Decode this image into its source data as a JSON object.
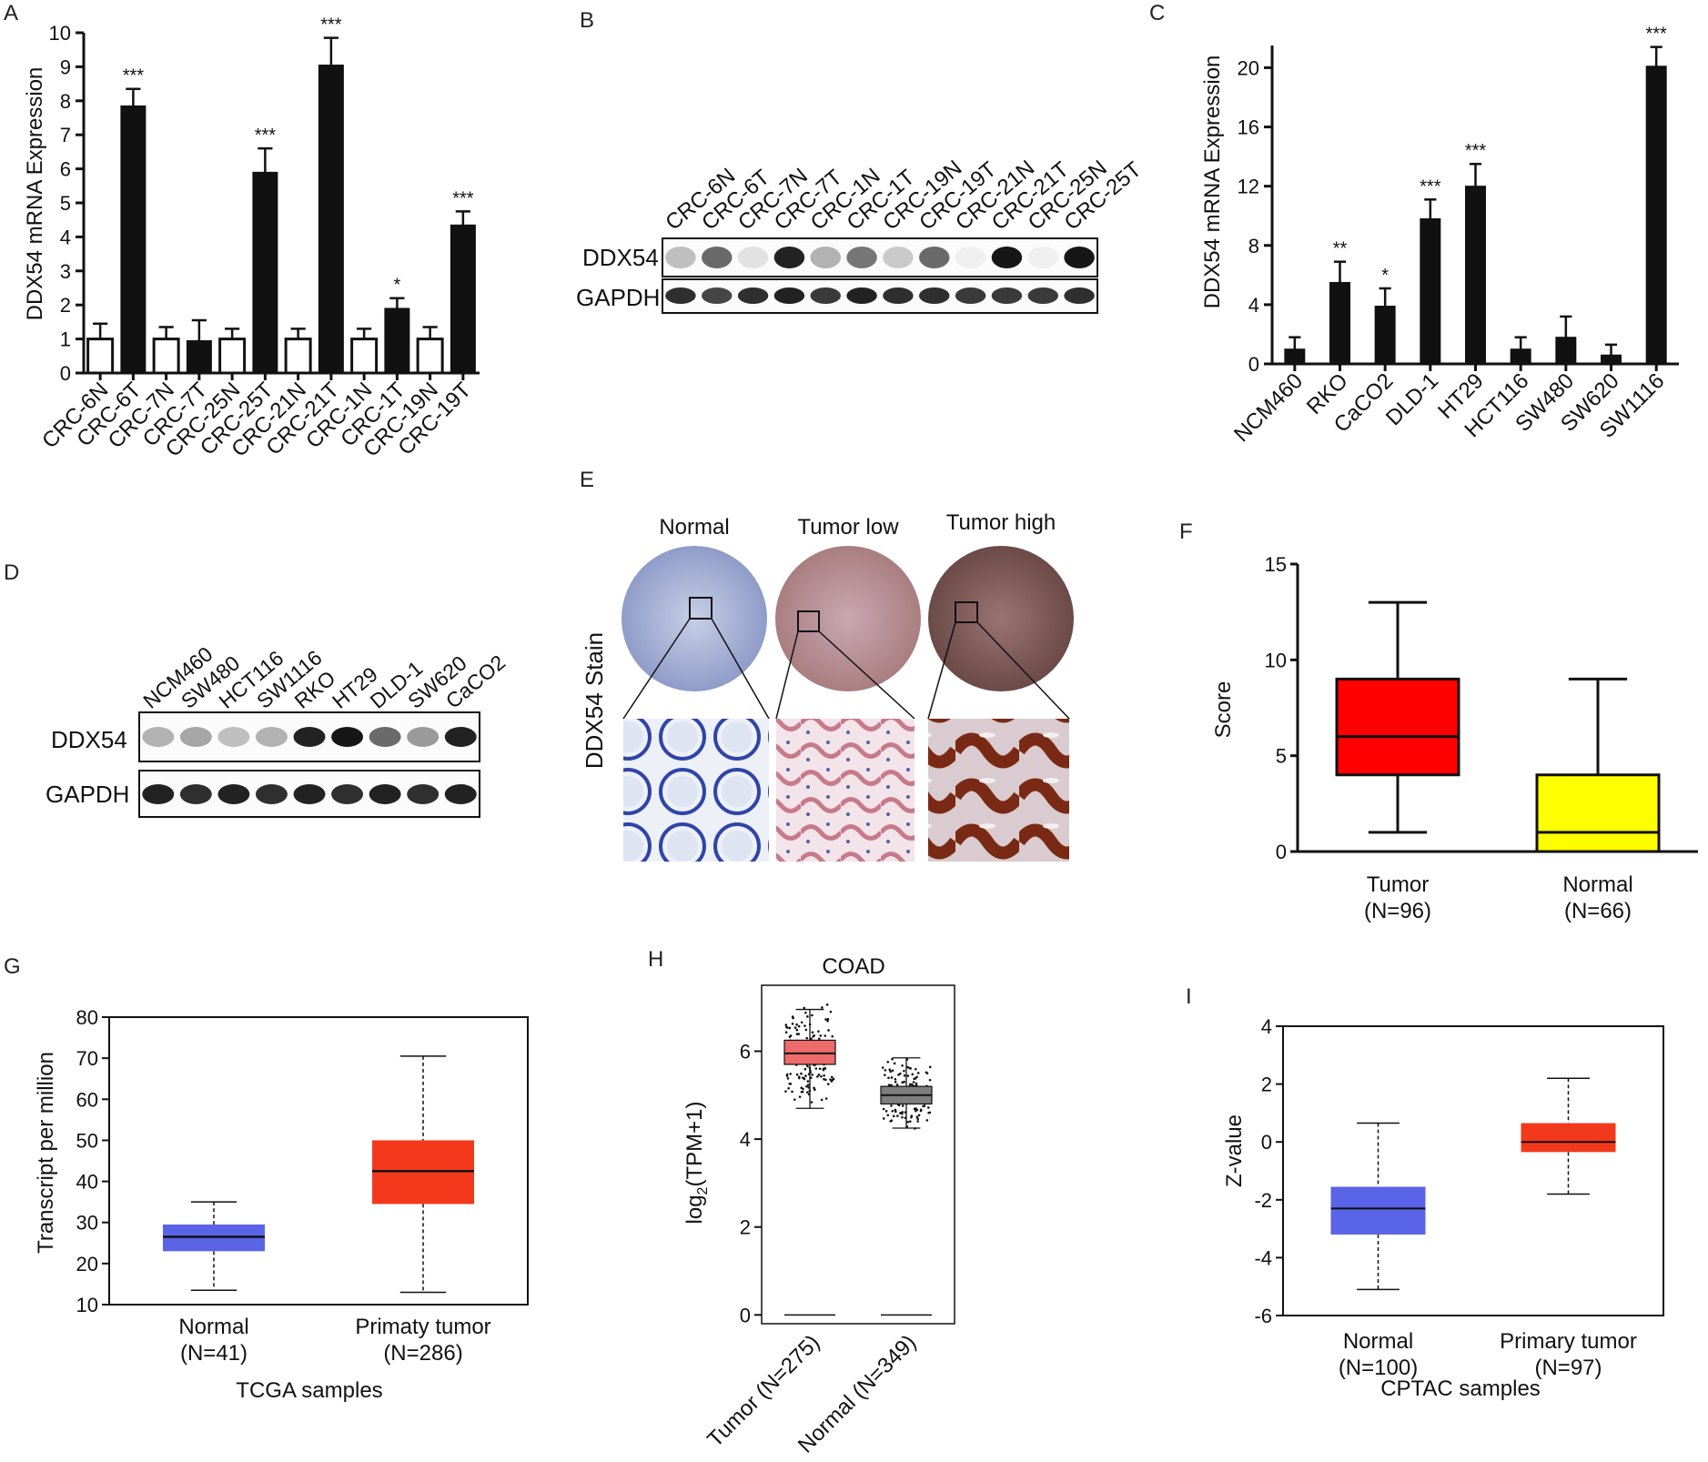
{
  "panel_letters": [
    "A",
    "B",
    "C",
    "D",
    "E",
    "F",
    "G",
    "H",
    "I"
  ],
  "colors": {
    "black": "#111111",
    "red": "#ff0000",
    "yellow": "#ffff00",
    "blue": "#5a64e6",
    "orange": "#f2391b",
    "pink": "#ef6a6a",
    "gray": "#7f7f7f"
  },
  "blotB": {
    "lanes": [
      "CRC-6N",
      "CRC-6T",
      "CRC-7N",
      "CRC-7T",
      "CRC-1N",
      "CRC-1T",
      "CRC-19N",
      "CRC-19T",
      "CRC-21N",
      "CRC-21T",
      "CRC-25N",
      "CRC-25T"
    ],
    "rows": [
      "DDX54",
      "GAPDH"
    ]
  },
  "blotD": {
    "lanes": [
      "NCM460",
      "SW480",
      "HCT116",
      "SW1116",
      "RKO",
      "HT29",
      "DLD-1",
      "SW620",
      "CaCO2"
    ],
    "rows": [
      "DDX54",
      "GAPDH"
    ]
  },
  "ihc": {
    "ylabel": "DDX54 Stain",
    "columns": [
      "Normal",
      "Tumor low",
      "Tumor high"
    ]
  },
  "chart_data": [
    {
      "id": "A",
      "type": "bar",
      "ylabel": "DDX54 mRNA Expression",
      "ylim": [
        0,
        10
      ],
      "yticks": [
        "0",
        "1",
        "2",
        "3",
        "4",
        "5",
        "6",
        "7",
        "8",
        "9",
        "10"
      ],
      "categories": [
        "CRC-6N",
        "CRC-6T",
        "CRC-7N",
        "CRC-7T",
        "CRC-25N",
        "CRC-25T",
        "CRC-21N",
        "CRC-21T",
        "CRC-1N",
        "CRC-1T",
        "CRC-19N",
        "CRC-19T"
      ],
      "values": [
        1.0,
        7.85,
        1.0,
        0.95,
        1.0,
        5.9,
        1.0,
        9.05,
        1.0,
        1.9,
        1.0,
        4.35
      ],
      "errors": [
        0.45,
        0.5,
        0.35,
        0.6,
        0.3,
        0.7,
        0.3,
        0.8,
        0.3,
        0.3,
        0.35,
        0.4
      ],
      "fill": [
        "open",
        "solid",
        "open",
        "solid",
        "open",
        "solid",
        "open",
        "solid",
        "open",
        "solid",
        "open",
        "solid"
      ],
      "significance": [
        "",
        "***",
        "",
        "",
        "",
        "***",
        "",
        "***",
        "",
        "*",
        "",
        "***"
      ]
    },
    {
      "id": "C",
      "type": "bar",
      "ylabel": "DDX54 mRNA Expression",
      "ylim": [
        0,
        21.5
      ],
      "yticks": [
        "0",
        "4",
        "8",
        "12",
        "16",
        "20"
      ],
      "categories": [
        "NCM460",
        "RKO",
        "CaCO2",
        "DLD-1",
        "HT29",
        "HCT116",
        "SW480",
        "SW620",
        "SW1116"
      ],
      "values": [
        1.0,
        5.5,
        3.9,
        9.8,
        12.0,
        1.0,
        1.8,
        0.6,
        20.1
      ],
      "errors": [
        0.8,
        1.4,
        1.2,
        1.3,
        1.5,
        0.8,
        1.4,
        0.7,
        1.3
      ],
      "significance": [
        "",
        "**",
        "*",
        "***",
        "***",
        "",
        "",
        "",
        "***"
      ]
    },
    {
      "id": "F",
      "type": "box",
      "ylabel": "Score",
      "ylim": [
        0,
        15
      ],
      "yticks": [
        "0",
        "5",
        "10",
        "15"
      ],
      "categories": [
        "Tumor",
        "Normal"
      ],
      "counts": [
        "(N=96)",
        "(N=66)"
      ],
      "boxes": [
        {
          "min": 1,
          "q1": 4,
          "median": 6,
          "q3": 9,
          "max": 13,
          "color": "#ff0000"
        },
        {
          "min": 0,
          "q1": 0,
          "median": 1,
          "q3": 4,
          "max": 9,
          "color": "#ffff00"
        }
      ]
    },
    {
      "id": "G",
      "type": "box",
      "ylabel": "Transcript per million",
      "xlabel": "TCGA samples",
      "ylim": [
        10,
        80
      ],
      "yticks": [
        "10",
        "20",
        "30",
        "40",
        "50",
        "60",
        "70",
        "80"
      ],
      "categories": [
        "Normal",
        "Primaty tumor"
      ],
      "counts": [
        "(N=41)",
        "(N=286)"
      ],
      "boxes": [
        {
          "min": 13.5,
          "q1": 23,
          "median": 26.5,
          "q3": 29.5,
          "max": 35,
          "color": "#5a64e6"
        },
        {
          "min": 13,
          "q1": 34.5,
          "median": 42.5,
          "q3": 50,
          "max": 70.5,
          "color": "#f2391b"
        }
      ]
    },
    {
      "id": "H",
      "type": "box",
      "title": "COAD",
      "ylabel_main": "log",
      "ylabel_sub": "2",
      "ylabel_rest": "(TPM+1)",
      "ylim": [
        -0.2,
        7.5
      ],
      "yticks": [
        "0",
        "2",
        "4",
        "6"
      ],
      "categories": [
        "Tumor (N=275)",
        "Normal (N=349)"
      ],
      "boxes": [
        {
          "min": 4.7,
          "q1": 5.7,
          "median": 5.95,
          "q3": 6.25,
          "max": 6.95,
          "color": "#ef6a6a"
        },
        {
          "min": 4.25,
          "q1": 4.8,
          "median": 5.0,
          "q3": 5.2,
          "max": 5.85,
          "color": "#7f7f7f"
        }
      ]
    },
    {
      "id": "I",
      "type": "box",
      "ylabel": "Z-value",
      "xlabel": "CPTAC samples",
      "ylim": [
        -6,
        4
      ],
      "yticks": [
        "-6",
        "-4",
        "-2",
        "0",
        "2",
        "4"
      ],
      "categories": [
        "Normal",
        "Primary tumor"
      ],
      "counts": [
        "(N=100)",
        "(N=97)"
      ],
      "boxes": [
        {
          "min": -5.1,
          "q1": -3.2,
          "median": -2.3,
          "q3": -1.55,
          "max": 0.65,
          "color": "#5a64e6"
        },
        {
          "min": -1.8,
          "q1": -0.35,
          "median": 0.0,
          "q3": 0.65,
          "max": 2.2,
          "color": "#f2391b"
        }
      ]
    }
  ]
}
